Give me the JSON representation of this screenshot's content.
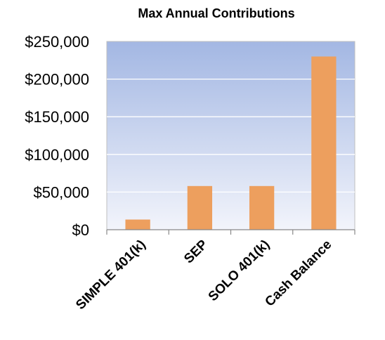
{
  "chart_data": {
    "type": "bar",
    "title": "Max Annual Contributions",
    "xlabel": "",
    "ylabel": "",
    "categories": [
      "SIMPLE 401(k)",
      "SEP",
      "SOLO 401(k)",
      "Cash Balance"
    ],
    "values": [
      13500,
      58000,
      58000,
      230000
    ],
    "ylim": [
      0,
      250000
    ],
    "yticks": [
      0,
      50000,
      100000,
      150000,
      200000,
      250000
    ],
    "ytick_labels": [
      "$0",
      "$50,000",
      "$100,000",
      "$150,000",
      "$200,000",
      "$250,000"
    ],
    "grid": true,
    "legend": "none",
    "colors": {
      "bar": "#ED9F5E",
      "plot_bg_top": "#A3B7E3",
      "plot_bg_bottom": "#F2F4FB",
      "grid": "#FFFFFF",
      "axis": "#888888"
    }
  }
}
